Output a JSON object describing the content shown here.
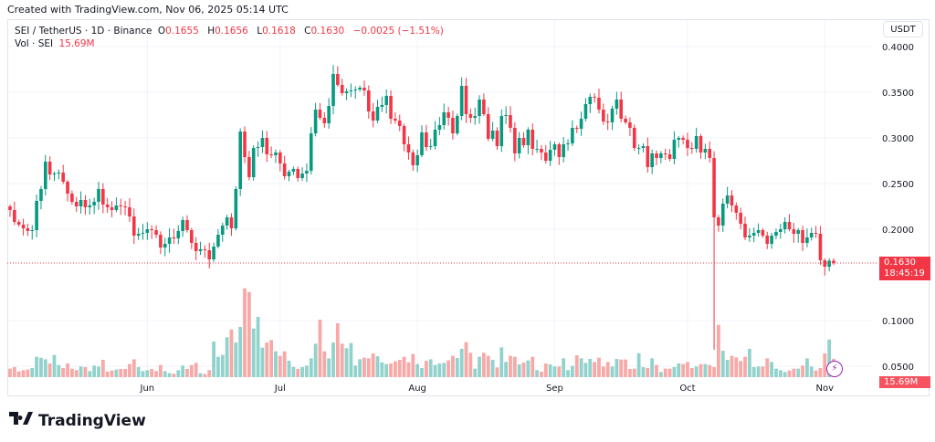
{
  "header": {
    "created": "Created with TradingView.com, Nov 06, 2025 05:14 UTC"
  },
  "legend": {
    "symbol": "SEI / TetherUS · 1D · Binance",
    "o_label": "O",
    "o": "0.1655",
    "h_label": "H",
    "h": "0.1656",
    "l_label": "L",
    "l": "0.1618",
    "c_label": "C",
    "c": "0.1630",
    "change": "−0.0025 (−1.51%)",
    "vol_label": "Vol · SEI",
    "vol": "15.69M"
  },
  "currency_button": "USDT",
  "price_tag": {
    "price": "0.1630",
    "countdown": "18:45:19"
  },
  "volume_tag": "15.69M",
  "logo": {
    "text": "TradingView",
    "mark": "TV"
  },
  "colors": {
    "up": "#089981",
    "down": "#f23645",
    "vol_up": "#92d2cc",
    "vol_down": "#f7a9a7",
    "grid": "#f0f3fa"
  },
  "chart_data": {
    "type": "candlestick",
    "title": "SEI / TetherUS · 1D · Binance",
    "x_tick_labels": [
      "Jun",
      "Jul",
      "Aug",
      "Sep",
      "Oct",
      "Nov"
    ],
    "x_tick_index": [
      31,
      61,
      92,
      123,
      153,
      184
    ],
    "y_tick_labels": [
      "0.4000",
      "0.3500",
      "0.3000",
      "0.2500",
      "0.2000",
      "0.1000",
      "0.0500"
    ],
    "y_tick_values": [
      0.4,
      0.35,
      0.3,
      0.25,
      0.2,
      0.1,
      0.05
    ],
    "ylim": [
      0.04,
      0.41
    ],
    "first_open": 0.225,
    "close": [
      0.221,
      0.208,
      0.205,
      0.201,
      0.198,
      0.199,
      0.231,
      0.244,
      0.274,
      0.26,
      0.261,
      0.262,
      0.252,
      0.239,
      0.23,
      0.225,
      0.232,
      0.224,
      0.226,
      0.23,
      0.244,
      0.227,
      0.224,
      0.221,
      0.226,
      0.225,
      0.224,
      0.214,
      0.193,
      0.195,
      0.196,
      0.2,
      0.199,
      0.194,
      0.18,
      0.184,
      0.191,
      0.19,
      0.198,
      0.21,
      0.199,
      0.185,
      0.176,
      0.178,
      0.177,
      0.167,
      0.181,
      0.194,
      0.204,
      0.213,
      0.201,
      0.244,
      0.307,
      0.279,
      0.257,
      0.289,
      0.29,
      0.3,
      0.282,
      0.281,
      0.284,
      0.272,
      0.258,
      0.263,
      0.266,
      0.256,
      0.261,
      0.264,
      0.305,
      0.331,
      0.322,
      0.316,
      0.335,
      0.37,
      0.358,
      0.349,
      0.351,
      0.352,
      0.353,
      0.355,
      0.352,
      0.329,
      0.319,
      0.334,
      0.336,
      0.346,
      0.321,
      0.319,
      0.313,
      0.293,
      0.284,
      0.27,
      0.281,
      0.306,
      0.29,
      0.291,
      0.309,
      0.314,
      0.328,
      0.322,
      0.305,
      0.324,
      0.357,
      0.326,
      0.322,
      0.324,
      0.342,
      0.326,
      0.299,
      0.308,
      0.291,
      0.324,
      0.325,
      0.311,
      0.283,
      0.3,
      0.292,
      0.309,
      0.288,
      0.288,
      0.284,
      0.275,
      0.287,
      0.293,
      0.279,
      0.293,
      0.294,
      0.311,
      0.31,
      0.321,
      0.337,
      0.345,
      0.344,
      0.331,
      0.318,
      0.317,
      0.332,
      0.342,
      0.321,
      0.317,
      0.311,
      0.289,
      0.289,
      0.291,
      0.268,
      0.283,
      0.278,
      0.283,
      0.282,
      0.277,
      0.298,
      0.3,
      0.298,
      0.289,
      0.288,
      0.302,
      0.284,
      0.288,
      0.278,
      0.213,
      0.204,
      0.228,
      0.237,
      0.226,
      0.218,
      0.206,
      0.191,
      0.193,
      0.196,
      0.199,
      0.193,
      0.184,
      0.193,
      0.197,
      0.2,
      0.208,
      0.2,
      0.195,
      0.199,
      0.185,
      0.191,
      0.196,
      0.195,
      0.166,
      0.159,
      0.1655,
      0.163
    ],
    "low_overrides": {
      "159": 0.068
    },
    "volume_millions": [
      7.3,
      8.6,
      4.9,
      6.0,
      6.5,
      7.8,
      17.4,
      16.6,
      15.3,
      11.7,
      19.0,
      10.4,
      7.8,
      11.7,
      7.3,
      6.0,
      9.1,
      8.6,
      5.2,
      9.9,
      9.1,
      14.8,
      4.7,
      5.7,
      6.5,
      7.0,
      7.0,
      11.2,
      15.3,
      8.6,
      5.2,
      6.0,
      7.0,
      5.2,
      10.4,
      5.2,
      3.4,
      2.9,
      6.0,
      9.9,
      7.0,
      10.4,
      12.2,
      3.4,
      2.6,
      6.0,
      30.4,
      17.4,
      19.0,
      34.1,
      40.8,
      29.6,
      42.9,
      75.9,
      72.8,
      41.6,
      51.5,
      25.2,
      29.6,
      31.7,
      22.1,
      18.2,
      22.1,
      14.0,
      8.8,
      7.0,
      8.6,
      9.9,
      16.1,
      28.6,
      49.1,
      22.1,
      16.1,
      29.6,
      46.0,
      28.6,
      24.7,
      29.1,
      9.9,
      15.3,
      16.6,
      16.1,
      20.3,
      17.9,
      12.7,
      11.2,
      11.7,
      13.5,
      14.8,
      17.4,
      12.7,
      19.8,
      11.2,
      7.8,
      14.0,
      15.3,
      10.4,
      11.7,
      12.2,
      14.3,
      18.2,
      16.4,
      24.2,
      29.9,
      20.8,
      7.3,
      17.4,
      20.8,
      18.2,
      14.8,
      8.3,
      25.5,
      13.0,
      18.2,
      17.4,
      10.9,
      12.5,
      14.3,
      17.4,
      6.0,
      4.7,
      11.7,
      10.9,
      9.1,
      9.1,
      16.1,
      6.0,
      9.6,
      18.7,
      16.1,
      12.2,
      15.6,
      13.0,
      16.6,
      9.1,
      13.0,
      9.1,
      15.6,
      15.1,
      15.1,
      7.0,
      7.3,
      20.5,
      8.6,
      7.8,
      16.1,
      10.4,
      4.4,
      7.3,
      7.3,
      8.6,
      11.7,
      11.2,
      13.0,
      7.8,
      9.1,
      11.2,
      11.2,
      10.4,
      8.6,
      44.7,
      22.6,
      14.8,
      18.2,
      16.9,
      13.8,
      17.4,
      24.2,
      8.6,
      9.1,
      9.1,
      16.1,
      13.0,
      7.3,
      6.0,
      4.4,
      5.7,
      7.3,
      7.3,
      9.9,
      16.1,
      9.1,
      5.7,
      7.8,
      20.3,
      32.2,
      15.69
    ],
    "last_price": 0.163,
    "grid": true
  }
}
